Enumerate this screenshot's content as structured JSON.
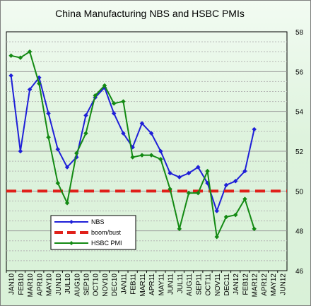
{
  "chart_data": {
    "type": "line",
    "title": "China Manufacturing NBS and HSBC  PMIs",
    "categories": [
      "JAN10",
      "FEB10",
      "MAR10",
      "APR10",
      "MAY10",
      "JUN10",
      "JUL10",
      "AUG10",
      "SEP10",
      "OCT10",
      "NOV10",
      "DEC10",
      "JAN11",
      "FEB11",
      "MAR11",
      "APR11",
      "MAY11",
      "JUN11",
      "JUL11",
      "AUG11",
      "SEP11",
      "OCT11",
      "NOV11",
      "DEC11",
      "JAN12",
      "FEB12",
      "MAR12",
      "APR12",
      "MAY12",
      "JUN12"
    ],
    "ylim": [
      46,
      58
    ],
    "yticks": [
      "46",
      "48",
      "50",
      "52",
      "54",
      "56",
      "58"
    ],
    "grid": true,
    "legend_position": "bottom-left",
    "series": [
      {
        "name": "NBS",
        "color": "#1f1fd8",
        "marker": "diamond",
        "values": [
          55.8,
          52.0,
          55.1,
          55.7,
          53.9,
          52.1,
          51.2,
          51.7,
          53.8,
          54.7,
          55.2,
          53.9,
          52.9,
          52.2,
          53.4,
          52.9,
          52.0,
          50.9,
          50.7,
          50.9,
          51.2,
          50.4,
          49.0,
          50.3,
          50.5,
          51.0,
          53.1,
          null,
          null,
          null
        ]
      },
      {
        "name": "boom/bust",
        "color": "#e0201a",
        "dashed": true,
        "constant": 50
      },
      {
        "name": "HSBC PMI",
        "color": "#138a13",
        "marker": "diamond",
        "values": [
          56.8,
          56.7,
          57.0,
          55.4,
          52.7,
          50.4,
          49.4,
          51.9,
          52.9,
          54.8,
          55.3,
          54.4,
          54.5,
          51.7,
          51.8,
          51.8,
          51.6,
          50.1,
          48.1,
          49.9,
          49.9,
          51.0,
          47.7,
          48.7,
          48.8,
          49.6,
          48.1,
          null,
          null,
          null
        ]
      }
    ]
  }
}
